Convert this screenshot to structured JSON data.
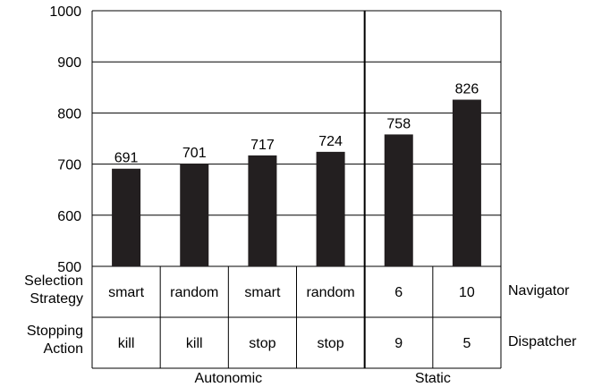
{
  "chart_data": {
    "type": "bar",
    "categories": [
      "smart/kill",
      "random/kill",
      "smart/stop",
      "random/stop",
      "6/9",
      "10/5"
    ],
    "values": [
      691,
      701,
      717,
      724,
      758,
      826
    ],
    "value_labels": [
      "691",
      "701",
      "717",
      "724",
      "758",
      "826"
    ],
    "ylim": [
      500,
      1000
    ],
    "yticks": [
      "500",
      "600",
      "700",
      "800",
      "900",
      "1000"
    ],
    "ytick_values": [
      500,
      600,
      700,
      800,
      900,
      1000
    ],
    "grid": true,
    "bar_color": "#231f20",
    "table": {
      "row1_label": [
        "Selection",
        "Strategy"
      ],
      "row2_label": [
        "Stopping",
        "Action"
      ],
      "row1_values": [
        "smart",
        "random",
        "smart",
        "random",
        "6",
        "10"
      ],
      "row2_values": [
        "kill",
        "kill",
        "stop",
        "stop",
        "9",
        "5"
      ],
      "row1_right_label": "Navigator",
      "row2_right_label": "Dispatcher"
    },
    "groups": [
      {
        "label": "Autonomic",
        "columns": 4
      },
      {
        "label": "Static",
        "columns": 2
      }
    ]
  }
}
